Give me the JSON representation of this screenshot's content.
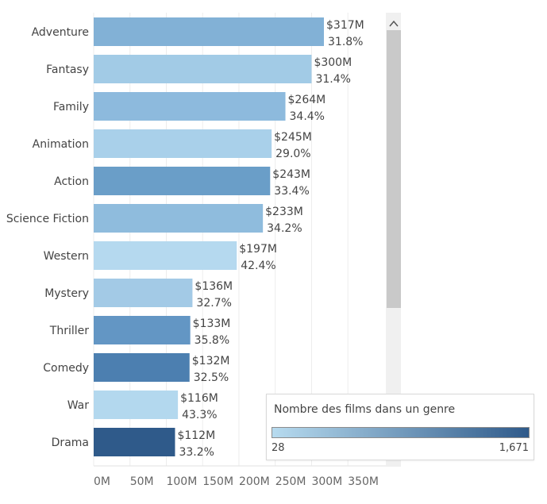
{
  "chart_data": {
    "type": "bar",
    "orientation": "horizontal",
    "categories": [
      "Adventure",
      "Fantasy",
      "Family",
      "Animation",
      "Action",
      "Science Fiction",
      "Western",
      "Mystery",
      "Thriller",
      "Comedy",
      "War",
      "Drama"
    ],
    "values": [
      317,
      300,
      264,
      245,
      243,
      233,
      197,
      136,
      133,
      132,
      116,
      112
    ],
    "value_labels": [
      "$317M",
      "$300M",
      "$264M",
      "$245M",
      "$243M",
      "$233M",
      "$197M",
      "$136M",
      "$133M",
      "$132M",
      "$116M",
      "$112M"
    ],
    "percent_labels": [
      "31.8%",
      "31.4%",
      "34.4%",
      "29.0%",
      "33.4%",
      "34.2%",
      "42.4%",
      "32.7%",
      "35.8%",
      "32.5%",
      "43.3%",
      "33.2%"
    ],
    "color_values": [
      400,
      140,
      330,
      130,
      650,
      300,
      60,
      150,
      700,
      900,
      50,
      1400
    ],
    "colors": [
      "#82b1d6",
      "#a2cbe6",
      "#8dbadd",
      "#a9d0ea",
      "#6a9ec8",
      "#8fbcdd",
      "#b5d9ef",
      "#a3cae6",
      "#6396c4",
      "#4c7fb0",
      "#b3d8ee",
      "#2f5a8a"
    ],
    "xaxis_ticks": [
      "0M",
      "50M",
      "100M",
      "150M",
      "200M",
      "250M",
      "300M",
      "350M"
    ],
    "xaxis_tick_values": [
      0,
      50,
      100,
      150,
      200,
      250,
      300,
      350
    ],
    "xlim": [
      0,
      400
    ],
    "grid": true,
    "xlabel": "",
    "ylabel": "",
    "title": ""
  },
  "legend": {
    "title": "Nombre des films dans un genre",
    "min_label": "28",
    "max_label": "1,671",
    "color_low": "#b7dbef",
    "color_high": "#2f5a8a",
    "placement": "bottom-right"
  },
  "scrollbar": {
    "up_arrow": "chevron-up"
  }
}
